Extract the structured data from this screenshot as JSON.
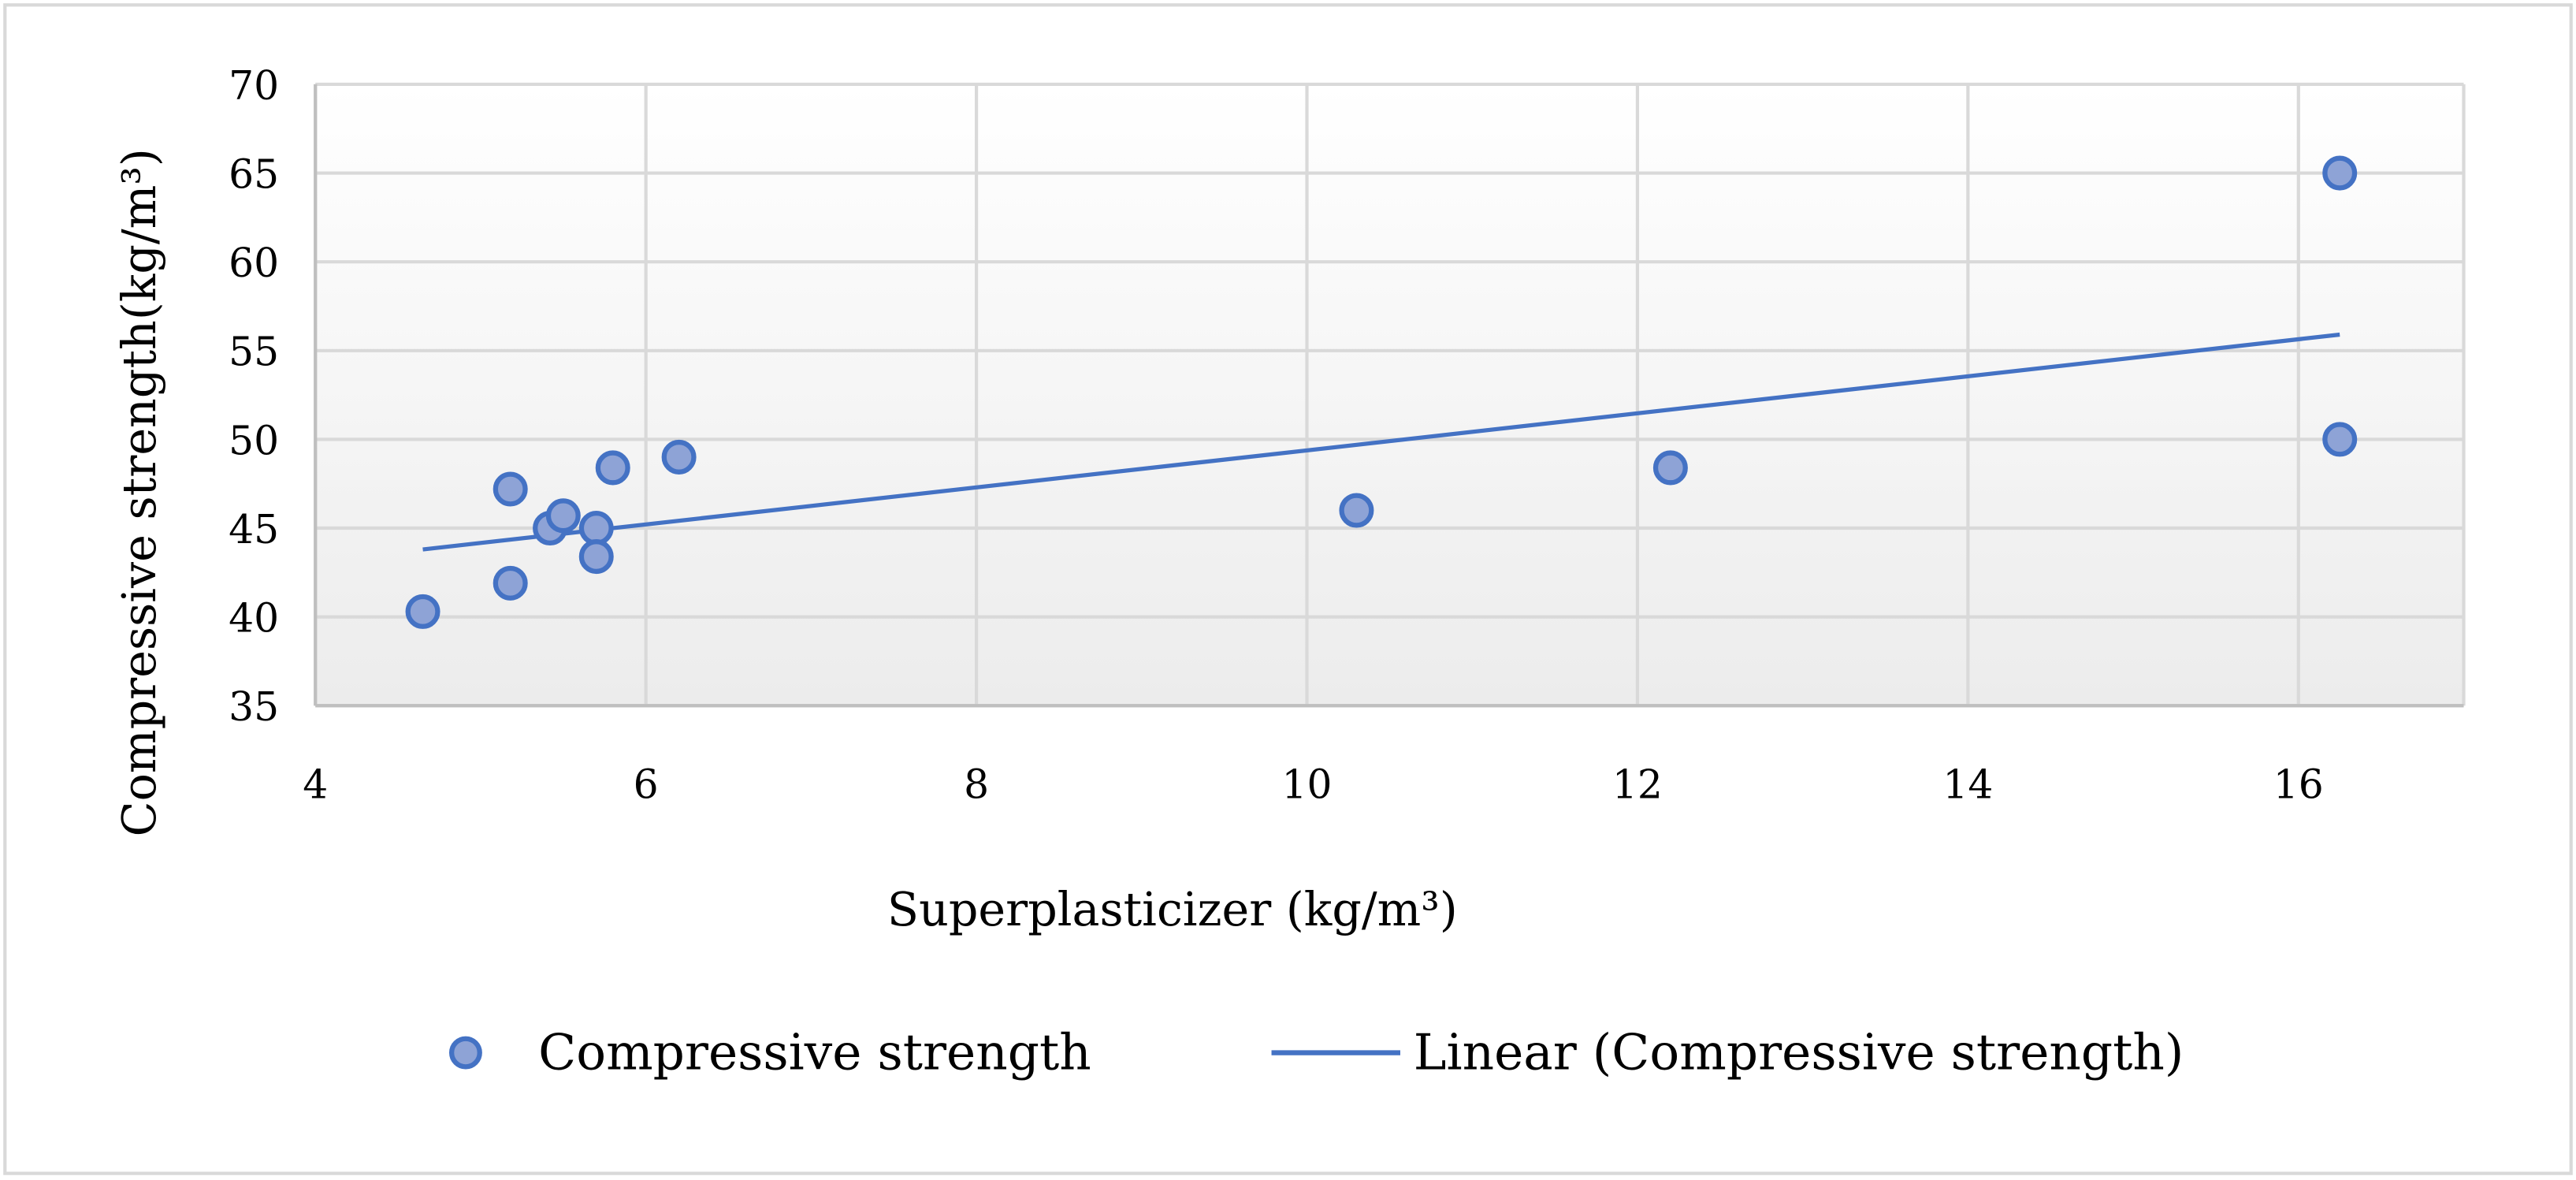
{
  "colors": {
    "background": "#ffffff",
    "outer_border": "#d9d9d9",
    "grid": "#d9d9d9",
    "plot_gradient_top": "#ffffff",
    "plot_gradient_bottom": "#ececec",
    "marker_fill": "#8ea3d6",
    "marker_stroke": "#4472c4",
    "trendline": "#4472c4",
    "axis_line": "#bfbfbf"
  },
  "chart_data": {
    "type": "scatter",
    "title": "",
    "xlabel": "Superplasticizer (kg/m³)",
    "ylabel": "Compressive strength(kg/m³)",
    "xlim": [
      4,
      17
    ],
    "ylim": [
      35,
      70
    ],
    "xticks": [
      4,
      6,
      8,
      10,
      12,
      14,
      16
    ],
    "xtick_labels": [
      "4",
      "6",
      "8",
      "10",
      "12",
      "14",
      "16"
    ],
    "yticks": [
      35,
      40,
      45,
      50,
      55,
      60,
      65,
      70
    ],
    "ytick_labels": [
      "35",
      "40",
      "45",
      "50",
      "55",
      "60",
      "65",
      "70"
    ],
    "grid": true,
    "legend_position": "bottom",
    "series": [
      {
        "name": "Compressive strength",
        "kind": "scatter",
        "points": [
          {
            "x": 4.65,
            "y": 40.3
          },
          {
            "x": 5.18,
            "y": 47.2
          },
          {
            "x": 5.18,
            "y": 41.9
          },
          {
            "x": 5.42,
            "y": 45.0
          },
          {
            "x": 5.5,
            "y": 45.7
          },
          {
            "x": 5.7,
            "y": 45.0
          },
          {
            "x": 5.7,
            "y": 43.4
          },
          {
            "x": 5.8,
            "y": 48.4
          },
          {
            "x": 6.2,
            "y": 49.0
          },
          {
            "x": 10.3,
            "y": 46.0
          },
          {
            "x": 12.2,
            "y": 48.4
          },
          {
            "x": 16.25,
            "y": 65.0
          },
          {
            "x": 16.25,
            "y": 50.0
          }
        ]
      },
      {
        "name": "Linear (Compressive strength)",
        "kind": "trendline",
        "x_start": 4.65,
        "y_start": 43.8,
        "x_end": 16.25,
        "y_end": 55.9
      }
    ]
  },
  "legend": {
    "items": [
      {
        "label": "Compressive strength",
        "symbol": "marker"
      },
      {
        "label": "Linear (Compressive strength)",
        "symbol": "line"
      }
    ]
  }
}
